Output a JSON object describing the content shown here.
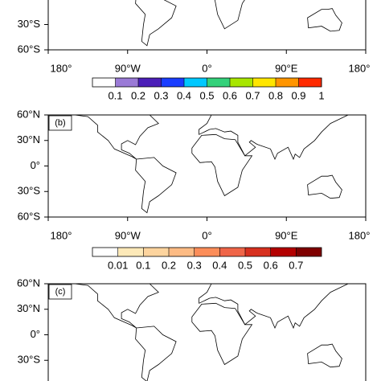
{
  "panels": [
    {
      "ylim": [
        -60,
        60
      ],
      "xlim": [
        -180,
        180
      ],
      "lat_ticks": [
        {
          "value": -30,
          "label": "30°S"
        },
        {
          "value": -60,
          "label": "60°S"
        }
      ],
      "lon_ticks": [
        {
          "value": -180,
          "label": "180°"
        },
        {
          "value": -90,
          "label": "90°W"
        },
        {
          "value": 0,
          "label": "0°"
        },
        {
          "value": 90,
          "label": "90°E"
        },
        {
          "value": 180,
          "label": "180°"
        }
      ]
    },
    {
      "label": "(b)",
      "ylim": [
        -60,
        60
      ],
      "xlim": [
        -180,
        180
      ],
      "lat_ticks": [
        {
          "value": 60,
          "label": "60°N"
        },
        {
          "value": 30,
          "label": "30°N"
        },
        {
          "value": 0,
          "label": "0°"
        },
        {
          "value": -30,
          "label": "30°S"
        },
        {
          "value": -60,
          "label": "60°S"
        }
      ],
      "lon_ticks": [
        {
          "value": -180,
          "label": "180°"
        },
        {
          "value": -90,
          "label": "90°W"
        },
        {
          "value": 0,
          "label": "0°"
        },
        {
          "value": 90,
          "label": "90°E"
        },
        {
          "value": 180,
          "label": "180°"
        }
      ]
    },
    {
      "label": "(c)",
      "ylim": [
        -60,
        60
      ],
      "xlim": [
        -180,
        180
      ],
      "lat_ticks": [
        {
          "value": 60,
          "label": "60°N"
        },
        {
          "value": 30,
          "label": "30°N"
        },
        {
          "value": 0,
          "label": "0°"
        },
        {
          "value": -30,
          "label": "30°S"
        }
      ]
    }
  ],
  "colorbars": [
    {
      "ticks": [
        0.1,
        0.2,
        0.3,
        0.4,
        0.5,
        0.6,
        0.7,
        0.8,
        0.9,
        1
      ],
      "colors": [
        "#ffffff",
        "#9a7ad6",
        "#4b1fb8",
        "#1a3dff",
        "#00c8ff",
        "#33d17a",
        "#a8e600",
        "#ffe600",
        "#ff9500",
        "#ff2a00"
      ]
    },
    {
      "ticks": [
        0.01,
        0.1,
        0.2,
        0.3,
        0.4,
        0.5,
        0.6,
        0.7
      ],
      "colors": [
        "#ffffff",
        "#fde9b8",
        "#fdd49e",
        "#fdbb84",
        "#fc8d59",
        "#ef6548",
        "#d7301f",
        "#b30000",
        "#7f0000"
      ]
    }
  ]
}
